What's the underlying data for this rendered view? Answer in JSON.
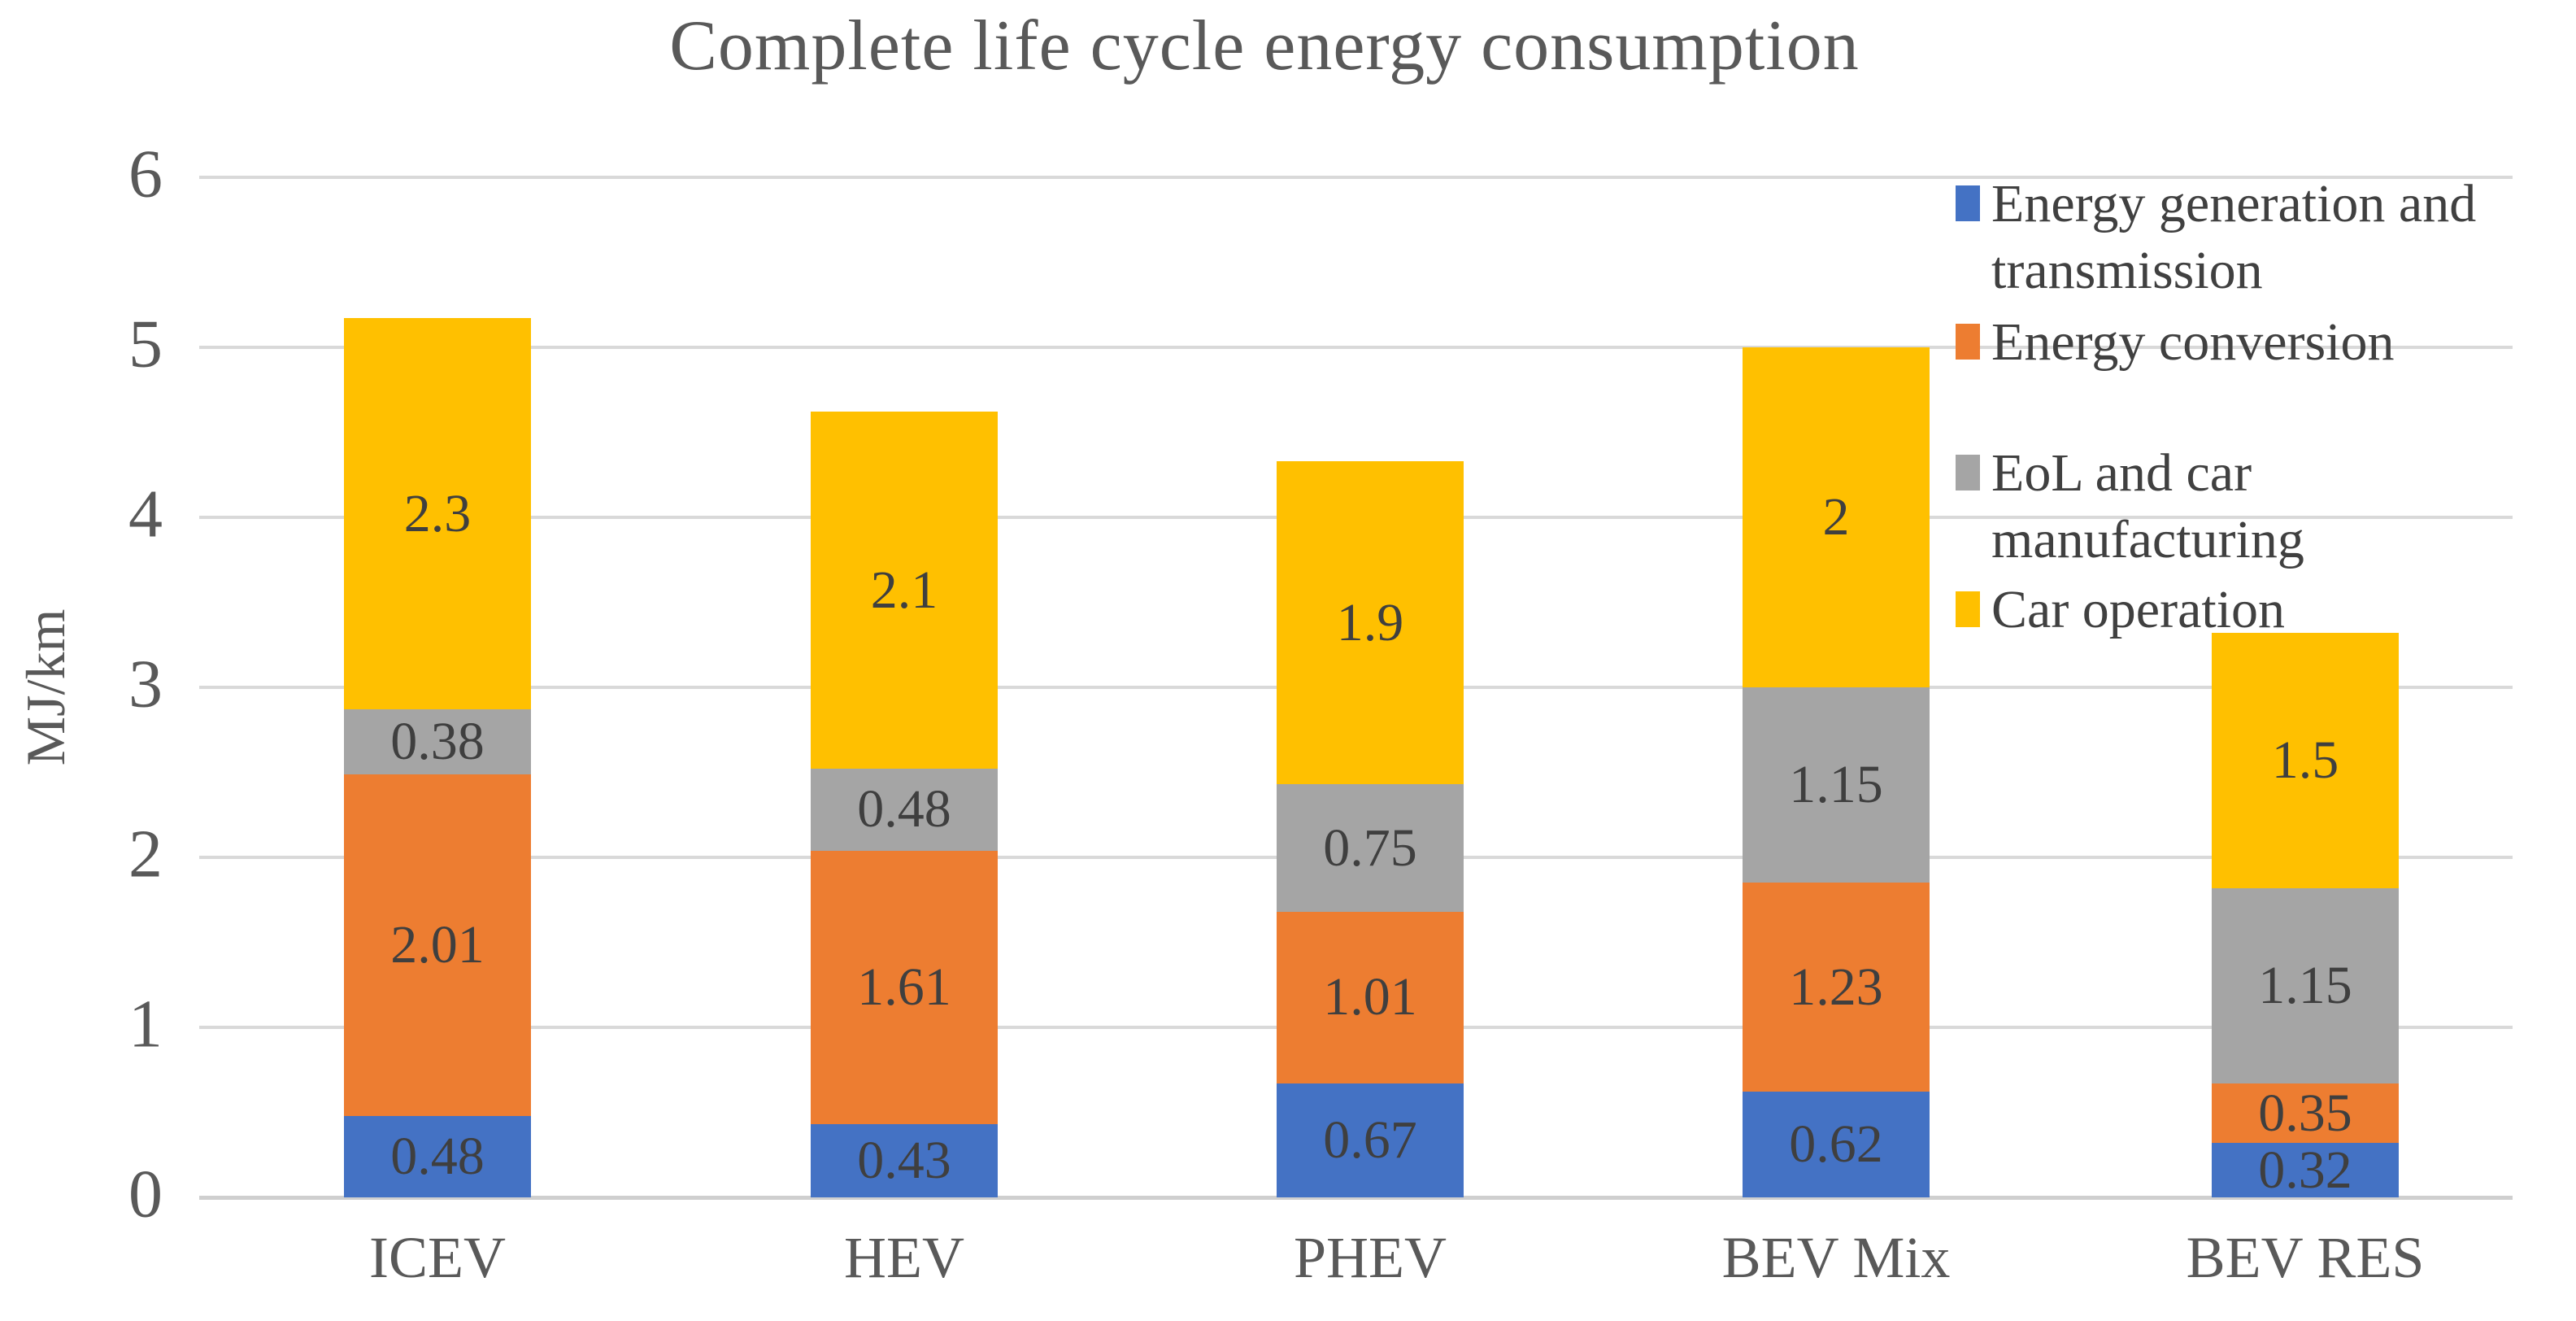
{
  "chart_data": {
    "type": "bar",
    "stacked": true,
    "title": "Complete life cycle energy consumption",
    "xlabel": "",
    "ylabel": "MJ/km",
    "ylim": [
      0,
      6
    ],
    "yticks": [
      0,
      1,
      2,
      3,
      4,
      5,
      6
    ],
    "grid": true,
    "legend_position": "right-inside",
    "categories": [
      "ICEV",
      "HEV",
      "PHEV",
      "BEV Mix",
      "BEV RES"
    ],
    "series": [
      {
        "name": "Energy generation and transmission",
        "color": "#4472C4",
        "values": [
          0.48,
          0.43,
          0.67,
          0.62,
          0.32
        ],
        "labels": [
          "0.48",
          "0.43",
          "0.67",
          "0.62",
          "0.32"
        ]
      },
      {
        "name": "Energy conversion",
        "color": "#ED7D31",
        "values": [
          2.01,
          1.61,
          1.01,
          1.23,
          0.35
        ],
        "labels": [
          "2.01",
          "1.61",
          "1.01",
          "1.23",
          "0.35"
        ]
      },
      {
        "name": "EoL and car manufacturing",
        "color": "#A5A5A5",
        "values": [
          0.38,
          0.48,
          0.75,
          1.15,
          1.15
        ],
        "labels": [
          "0.38",
          "0.48",
          "0.75",
          "1.15",
          "1.15"
        ]
      },
      {
        "name": "Car operation",
        "color": "#FFC000",
        "values": [
          2.3,
          2.1,
          1.9,
          2,
          1.5
        ],
        "labels": [
          "2.3",
          "2.1",
          "1.9",
          "2",
          "1.5"
        ]
      }
    ],
    "totals": [
      5.17,
      4.62,
      4.33,
      5.0,
      3.32
    ]
  },
  "legend": {
    "items": [
      {
        "label": "Energy generation and transmission",
        "color": "#4472C4"
      },
      {
        "label": "Energy conversion",
        "color": "#ED7D31"
      },
      {
        "label": "EoL and car manufacturing",
        "color": "#A5A5A5"
      },
      {
        "label": "Car operation",
        "color": "#FFC000"
      }
    ]
  },
  "colors": {
    "grid": "#D9D9D9",
    "axis_line": "#CFCFCF",
    "tick_text": "#595959",
    "data_label_text": "#3F3F3F",
    "legend_text": "#404040",
    "title_text": "#595959"
  }
}
